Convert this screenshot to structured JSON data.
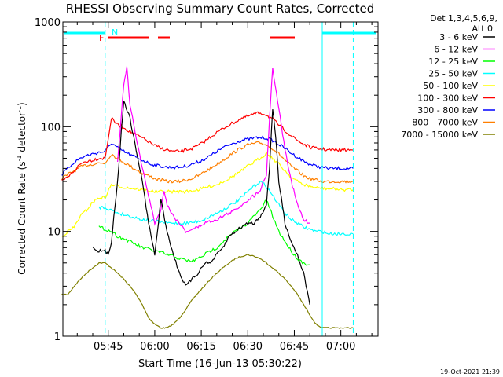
{
  "chart_data": {
    "type": "line",
    "title": "RHESSI Observing Summary Count Rates, Corrected",
    "xlabel": "Start Time (16-Jun-13 05:30:22)",
    "ylabel_main": "Corrected Count Rate (s",
    "ylabel_sup1": "-1",
    "ylabel_mid": " detector",
    "ylabel_sup2": "-1",
    "ylabel_end": ")",
    "yscale": "log",
    "ylim": [
      1,
      1000
    ],
    "xlim": [
      "05:30:22",
      "07:12:00"
    ],
    "x_ticks": [
      "05:45",
      "06:00",
      "06:15",
      "06:30",
      "06:45",
      "07:00"
    ],
    "y_ticks": [
      "1",
      "10",
      "100",
      "1000"
    ],
    "legend_header": [
      "Det 1,3,4,5,6,9,",
      "Att 0"
    ],
    "legend_position": "right",
    "flags": {
      "F": "F",
      "N": "N"
    },
    "night_markers": [
      "05:44:00",
      "07:04:00"
    ],
    "timestamp": "19-Oct-2021 21:39",
    "series": [
      {
        "name": "3 - 6 keV",
        "color": "#000000",
        "x": [
          "05:40",
          "05:42",
          "05:44",
          "05:45",
          "05:46",
          "05:48",
          "05:50",
          "05:52",
          "05:54",
          "05:56",
          "05:58",
          "06:00",
          "06:02",
          "06:04",
          "06:06",
          "06:08",
          "06:10",
          "06:12",
          "06:14",
          "06:16",
          "06:18",
          "06:20",
          "06:22",
          "06:24",
          "06:26",
          "06:28",
          "06:30",
          "06:32",
          "06:34",
          "06:36",
          "06:37",
          "06:38",
          "06:39",
          "06:40",
          "06:42",
          "06:44",
          "06:46",
          "06:48",
          "06:50"
        ],
        "values": [
          7,
          6.5,
          6.5,
          6,
          8,
          30,
          180,
          120,
          60,
          30,
          12,
          6,
          20,
          10,
          6,
          4,
          3,
          3.5,
          4,
          5,
          5,
          6,
          7,
          9,
          10,
          11,
          12,
          12,
          14,
          18,
          40,
          150,
          80,
          30,
          12,
          8,
          6,
          4,
          2
        ]
      },
      {
        "name": "6 - 12 keV",
        "color": "#ff00ff",
        "x": [
          "05:48",
          "05:50",
          "05:51",
          "05:52",
          "05:54",
          "05:56",
          "05:58",
          "06:00",
          "06:02",
          "06:03",
          "06:04",
          "06:06",
          "06:08",
          "06:10",
          "06:12",
          "06:14",
          "06:16",
          "06:18",
          "06:20",
          "06:22",
          "06:24",
          "06:26",
          "06:28",
          "06:30",
          "06:32",
          "06:34",
          "06:36",
          "06:37",
          "06:38",
          "06:40",
          "06:42",
          "06:44",
          "06:46",
          "06:48",
          "06:50"
        ],
        "values": [
          45,
          250,
          370,
          160,
          80,
          40,
          22,
          12,
          16,
          25,
          18,
          14,
          12,
          10,
          10.5,
          11,
          12,
          12.5,
          13,
          14,
          15,
          16,
          18,
          20,
          22,
          25,
          35,
          120,
          360,
          150,
          60,
          30,
          18,
          13,
          12
        ]
      },
      {
        "name": "12 - 25 keV",
        "color": "#00ff00",
        "x": [
          "05:42",
          "05:44",
          "05:46",
          "05:48",
          "05:50",
          "05:52",
          "05:54",
          "05:56",
          "05:58",
          "06:00",
          "06:02",
          "06:04",
          "06:06",
          "06:08",
          "06:10",
          "06:12",
          "06:14",
          "06:16",
          "06:18",
          "06:20",
          "06:22",
          "06:24",
          "06:26",
          "06:28",
          "06:30",
          "06:32",
          "06:34",
          "06:36",
          "06:38",
          "06:40",
          "06:42",
          "06:44",
          "06:46",
          "06:48",
          "06:50"
        ],
        "values": [
          11,
          10.5,
          10,
          9,
          8.5,
          8,
          7.5,
          7,
          6.8,
          6.5,
          6.3,
          6,
          5.8,
          5.5,
          5.3,
          5.2,
          5.5,
          6,
          6.5,
          7,
          8,
          9,
          10,
          11,
          12,
          14,
          16,
          20,
          14,
          10,
          8,
          6.5,
          5.5,
          5,
          4.8
        ]
      },
      {
        "name": "25 - 50 keV",
        "color": "#00ffff",
        "x": [
          "05:42",
          "05:44",
          "05:46",
          "05:48",
          "05:50",
          "05:52",
          "05:54",
          "05:56",
          "05:58",
          "06:00",
          "06:02",
          "06:04",
          "06:06",
          "06:08",
          "06:10",
          "06:12",
          "06:14",
          "06:16",
          "06:18",
          "06:20",
          "06:22",
          "06:24",
          "06:26",
          "06:28",
          "06:30",
          "06:32",
          "06:34",
          "06:36",
          "06:38",
          "06:40",
          "06:42",
          "06:44",
          "06:46",
          "06:48",
          "06:50",
          "06:52",
          "06:54",
          "06:56",
          "06:58",
          "07:00",
          "07:02",
          "07:04"
        ],
        "values": [
          17,
          17,
          16,
          15,
          14.5,
          14,
          13.5,
          13,
          12.8,
          12.5,
          12.3,
          12,
          12,
          12,
          12,
          12.2,
          12.5,
          13,
          14,
          15,
          16,
          17.5,
          19,
          21,
          24,
          27,
          30,
          27,
          22,
          18,
          15,
          13,
          12,
          11,
          10.5,
          10,
          10,
          9.5,
          9.5,
          9.5,
          9.5,
          9.5
        ]
      },
      {
        "name": "50 - 100 keV",
        "color": "#ffff00",
        "x": [
          "05:30",
          "05:32",
          "05:34",
          "05:36",
          "05:38",
          "05:40",
          "05:42",
          "05:44",
          "05:46",
          "05:48",
          "05:50",
          "05:52",
          "05:54",
          "05:56",
          "05:58",
          "06:00",
          "06:02",
          "06:04",
          "06:06",
          "06:08",
          "06:10",
          "06:12",
          "06:14",
          "06:16",
          "06:18",
          "06:20",
          "06:22",
          "06:24",
          "06:26",
          "06:28",
          "06:30",
          "06:32",
          "06:34",
          "06:36",
          "06:38",
          "06:40",
          "06:42",
          "06:44",
          "06:46",
          "06:48",
          "06:50",
          "06:52",
          "06:54",
          "06:56",
          "06:58",
          "07:00",
          "07:02",
          "07:04"
        ],
        "values": [
          9,
          10,
          11,
          14,
          16,
          19,
          21,
          21,
          28,
          27,
          26.5,
          26,
          25.5,
          25,
          24.5,
          24,
          24,
          24,
          24,
          24,
          24,
          24.5,
          25,
          26,
          27,
          28,
          30,
          32,
          35,
          38,
          42,
          46,
          50,
          56,
          50,
          44,
          38,
          33,
          30,
          28,
          27,
          26,
          26,
          25.5,
          25.5,
          25,
          25,
          25
        ]
      },
      {
        "name": "100 - 300 keV",
        "color": "#ff0000",
        "x": [
          "05:30",
          "05:32",
          "05:34",
          "05:36",
          "05:38",
          "05:40",
          "05:42",
          "05:44",
          "05:46",
          "05:48",
          "05:50",
          "05:52",
          "05:54",
          "05:56",
          "05:58",
          "06:00",
          "06:02",
          "06:04",
          "06:06",
          "06:08",
          "06:10",
          "06:12",
          "06:14",
          "06:16",
          "06:18",
          "06:20",
          "06:22",
          "06:24",
          "06:26",
          "06:28",
          "06:30",
          "06:32",
          "06:34",
          "06:36",
          "06:38",
          "06:40",
          "06:42",
          "06:44",
          "06:46",
          "06:48",
          "06:50",
          "06:52",
          "06:54",
          "06:56",
          "06:58",
          "07:00",
          "07:02",
          "07:04"
        ],
        "values": [
          30,
          33,
          38,
          44,
          47,
          48,
          50,
          50,
          120,
          105,
          98,
          90,
          84,
          78,
          72,
          66,
          62,
          60,
          58,
          58,
          60,
          62,
          66,
          72,
          80,
          88,
          96,
          104,
          112,
          120,
          126,
          132,
          136,
          130,
          118,
          104,
          92,
          82,
          74,
          68,
          64,
          62,
          61,
          60,
          60,
          60,
          60,
          60
        ]
      },
      {
        "name": "300 - 800 keV",
        "color": "#0000ff",
        "x": [
          "05:30",
          "05:32",
          "05:34",
          "05:36",
          "05:38",
          "05:40",
          "05:42",
          "05:44",
          "05:46",
          "05:48",
          "05:50",
          "05:52",
          "05:54",
          "05:56",
          "05:58",
          "06:00",
          "06:02",
          "06:04",
          "06:06",
          "06:08",
          "06:10",
          "06:12",
          "06:14",
          "06:16",
          "06:18",
          "06:20",
          "06:22",
          "06:24",
          "06:26",
          "06:28",
          "06:30",
          "06:32",
          "06:34",
          "06:36",
          "06:38",
          "06:40",
          "06:42",
          "06:44",
          "06:46",
          "06:48",
          "06:50",
          "06:52",
          "06:54",
          "06:56",
          "06:58",
          "07:00",
          "07:02",
          "07:04"
        ],
        "values": [
          35,
          40,
          46,
          50,
          53,
          55,
          57,
          58,
          70,
          63,
          58,
          54,
          51,
          48,
          45,
          43,
          42,
          41,
          41,
          41,
          42,
          44,
          46,
          49,
          53,
          58,
          63,
          67,
          71,
          74,
          76,
          78,
          79,
          78,
          74,
          68,
          62,
          56,
          51,
          47,
          44,
          42,
          41,
          40,
          40,
          40,
          40,
          40
        ]
      },
      {
        "name": "800 - 7000 keV",
        "color": "#ff7f00",
        "x": [
          "05:30",
          "05:32",
          "05:34",
          "05:36",
          "05:38",
          "05:40",
          "05:42",
          "05:44",
          "05:46",
          "05:48",
          "05:50",
          "05:52",
          "05:54",
          "05:56",
          "05:58",
          "06:00",
          "06:02",
          "06:04",
          "06:06",
          "06:08",
          "06:10",
          "06:12",
          "06:14",
          "06:16",
          "06:18",
          "06:20",
          "06:22",
          "06:24",
          "06:26",
          "06:28",
          "06:30",
          "06:32",
          "06:34",
          "06:36",
          "06:38",
          "06:40",
          "06:42",
          "06:44",
          "06:46",
          "06:48",
          "06:50",
          "06:52",
          "06:54",
          "06:56",
          "06:58",
          "07:00",
          "07:02",
          "07:04"
        ],
        "values": [
          32,
          35,
          38,
          41,
          43,
          44,
          45,
          45,
          55,
          50,
          46,
          42,
          39,
          36,
          34,
          32,
          31,
          30,
          30,
          30,
          31,
          32,
          34,
          37,
          40,
          44,
          48,
          53,
          58,
          63,
          67,
          69,
          70,
          67,
          62,
          55,
          48,
          42,
          38,
          34,
          32,
          31,
          30,
          30,
          30,
          30,
          30,
          30
        ]
      },
      {
        "name": "7000 - 15000 keV",
        "color": "#808000",
        "x": [
          "05:30",
          "05:32",
          "05:34",
          "05:36",
          "05:38",
          "05:40",
          "05:42",
          "05:44",
          "05:46",
          "05:48",
          "05:50",
          "05:52",
          "05:54",
          "05:56",
          "05:58",
          "06:00",
          "06:02",
          "06:04",
          "06:06",
          "06:08",
          "06:10",
          "06:12",
          "06:14",
          "06:16",
          "06:18",
          "06:20",
          "06:22",
          "06:24",
          "06:26",
          "06:28",
          "06:30",
          "06:32",
          "06:34",
          "06:36",
          "06:38",
          "06:40",
          "06:42",
          "06:44",
          "06:46",
          "06:48",
          "06:50",
          "06:52",
          "06:54",
          "06:56",
          "06:58",
          "07:00",
          "07:02",
          "07:04"
        ],
        "values": [
          2.5,
          2.5,
          3,
          3.5,
          4,
          4.5,
          5,
          5,
          4.5,
          4,
          3.5,
          3,
          2.5,
          2,
          1.5,
          1.3,
          1.2,
          1.2,
          1.3,
          1.5,
          1.8,
          2.2,
          2.6,
          3,
          3.5,
          4,
          4.5,
          5,
          5.5,
          5.8,
          6,
          5.8,
          5.5,
          5,
          4.5,
          4,
          3.5,
          3,
          2.5,
          2,
          1.6,
          1.3,
          1.2,
          1.2,
          1.2,
          1.2,
          1.2,
          1.2
        ]
      }
    ],
    "legend_labels": [
      {
        "text": "3 - 6 keV",
        "color": "#000000"
      },
      {
        "text": "6 - 12 keV",
        "color": "#ff00ff"
      },
      {
        "text": "12 - 25 keV",
        "color": "#00ff00"
      },
      {
        "text": "25 - 50 keV",
        "color": "#00ffff"
      },
      {
        "text": "50 - 100 keV",
        "color": "#ffff00"
      },
      {
        "text": "100 - 300 keV",
        "color": "#ff0000"
      },
      {
        "text": "300 - 800 keV",
        "color": "#0000ff"
      },
      {
        "text": "800 - 7000 keV",
        "color": "#ff7f00"
      },
      {
        "text": "7000 - 15000 keV",
        "color": "#808000"
      }
    ]
  }
}
